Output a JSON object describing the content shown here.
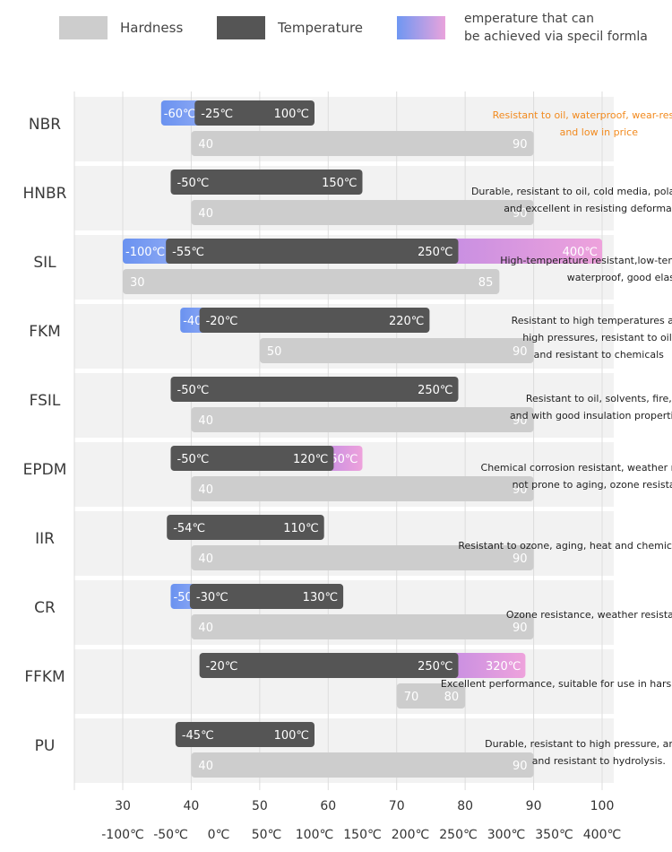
{
  "legend": {
    "hardness_label": "Hardness",
    "temperature_label": "Temperature",
    "special_label_line1": "emperature that can",
    "special_label_line2": "be achieved via specil formla"
  },
  "colors": {
    "hardness": "#cdcdcd",
    "temperature": "#555555",
    "special_cold": "#6f97f2",
    "special_hot": "#e38fd8",
    "row_band": "#f2f2f2",
    "grid": "#dddddd",
    "accent_note": "#f28a1e"
  },
  "chart_data": {
    "type": "bar",
    "orientation": "horizontal-range",
    "axes": {
      "hardness_ticks": [
        "30",
        "40",
        "50",
        "60",
        "70",
        "80",
        "90",
        "100"
      ],
      "hardness_range": [
        30,
        100
      ],
      "temperature_ticks": [
        "-100℃",
        "-50℃",
        "0℃",
        "50℃",
        "100℃",
        "150℃",
        "200℃",
        "250℃",
        "300℃",
        "350℃",
        "400℃"
      ],
      "temperature_range": [
        -100,
        400
      ]
    },
    "materials": [
      {
        "name": "NBR",
        "temperature": {
          "min": -25,
          "max": 100,
          "min_label": "-25℃",
          "max_label": "100℃"
        },
        "special_low": {
          "min": -60,
          "label": "-60℃"
        },
        "hardness": {
          "min": 40,
          "max": 90,
          "min_label": "40",
          "max_label": "90"
        },
        "note": [
          "Resistant to oil, waterproof, wear-resistant,",
          "and low in price"
        ],
        "note_accent": true
      },
      {
        "name": "HNBR",
        "temperature": {
          "min": -50,
          "max": 150,
          "min_label": "-50℃",
          "max_label": "150℃"
        },
        "hardness": {
          "min": 40,
          "max": 90,
          "min_label": "40",
          "max_label": "90"
        },
        "note": [
          "Durable, resistant to oil, cold media, polar solvents,",
          "and excellent in resisting deformation."
        ]
      },
      {
        "name": "SIL",
        "temperature": {
          "min": -55,
          "max": 250,
          "min_label": "-55℃",
          "max_label": "250℃"
        },
        "special_low": {
          "min": -100,
          "label": "-100℃"
        },
        "special_high": {
          "max": 400,
          "label": "400℃"
        },
        "hardness": {
          "min": 30,
          "max": 85,
          "min_label": "30",
          "max_label": "85"
        },
        "note": [
          "High-temperature resistant,low-temperature resistant",
          "waterproof, good elasticity"
        ]
      },
      {
        "name": "FKM",
        "temperature": {
          "min": -20,
          "max": 220,
          "min_label": "-20℃",
          "max_label": "220℃"
        },
        "special_low": {
          "min": -40,
          "label": "-40℃"
        },
        "hardness": {
          "min": 50,
          "max": 90,
          "min_label": "50",
          "max_label": "90"
        },
        "note": [
          "Resistant to high temperatures and",
          "high pressures, resistant to oil,",
          "and resistant to chemicals"
        ]
      },
      {
        "name": "FSIL",
        "temperature": {
          "min": -50,
          "max": 250,
          "min_label": "-50℃",
          "max_label": "250℃"
        },
        "hardness": {
          "min": 40,
          "max": 90,
          "min_label": "40",
          "max_label": "90"
        },
        "note": [
          "Resistant to oil, solvents, fire,",
          "and with good insulation properties."
        ]
      },
      {
        "name": "EPDM",
        "temperature": {
          "min": -50,
          "max": 120,
          "min_label": "-50℃",
          "max_label": "120℃"
        },
        "special_high": {
          "max": 150,
          "label": "150℃"
        },
        "hardness": {
          "min": 40,
          "max": 90,
          "min_label": "40",
          "max_label": "90"
        },
        "note": [
          "Chemical corrosion resistant, weather resistant,",
          "not prone to aging, ozone resistant"
        ]
      },
      {
        "name": "IIR",
        "temperature": {
          "min": -54,
          "max": 110,
          "min_label": "-54℃",
          "max_label": "110℃"
        },
        "hardness": {
          "min": 40,
          "max": 90,
          "min_label": "40",
          "max_label": "90"
        },
        "note": [
          "Resistant to ozone, aging, heat and chemical substances"
        ]
      },
      {
        "name": "CR",
        "temperature": {
          "min": -30,
          "max": 130,
          "min_label": "-30℃",
          "max_label": "130℃"
        },
        "special_low": {
          "min": -50,
          "label": "-50℃"
        },
        "hardness": {
          "min": 40,
          "max": 90,
          "min_label": "40",
          "max_label": "90"
        },
        "note": [
          "Ozone resistance, weather resistance"
        ]
      },
      {
        "name": "FFKM",
        "temperature": {
          "min": -20,
          "max": 250,
          "min_label": "-20℃",
          "max_label": "250℃"
        },
        "special_high": {
          "max": 320,
          "label": "320℃"
        },
        "hardness": {
          "min": 70,
          "max": 80,
          "min_label": "70",
          "max_label": "80"
        },
        "note": [
          "Excellent performance, suitable for use in harsh environments"
        ]
      },
      {
        "name": "PU",
        "temperature": {
          "min": -45,
          "max": 100,
          "min_label": "-45℃",
          "max_label": "100℃"
        },
        "hardness": {
          "min": 40,
          "max": 90,
          "min_label": "40",
          "max_label": "90"
        },
        "note": [
          "Durable, resistant to high pressure, anti-aging",
          "and resistant to hydrolysis."
        ]
      }
    ]
  }
}
